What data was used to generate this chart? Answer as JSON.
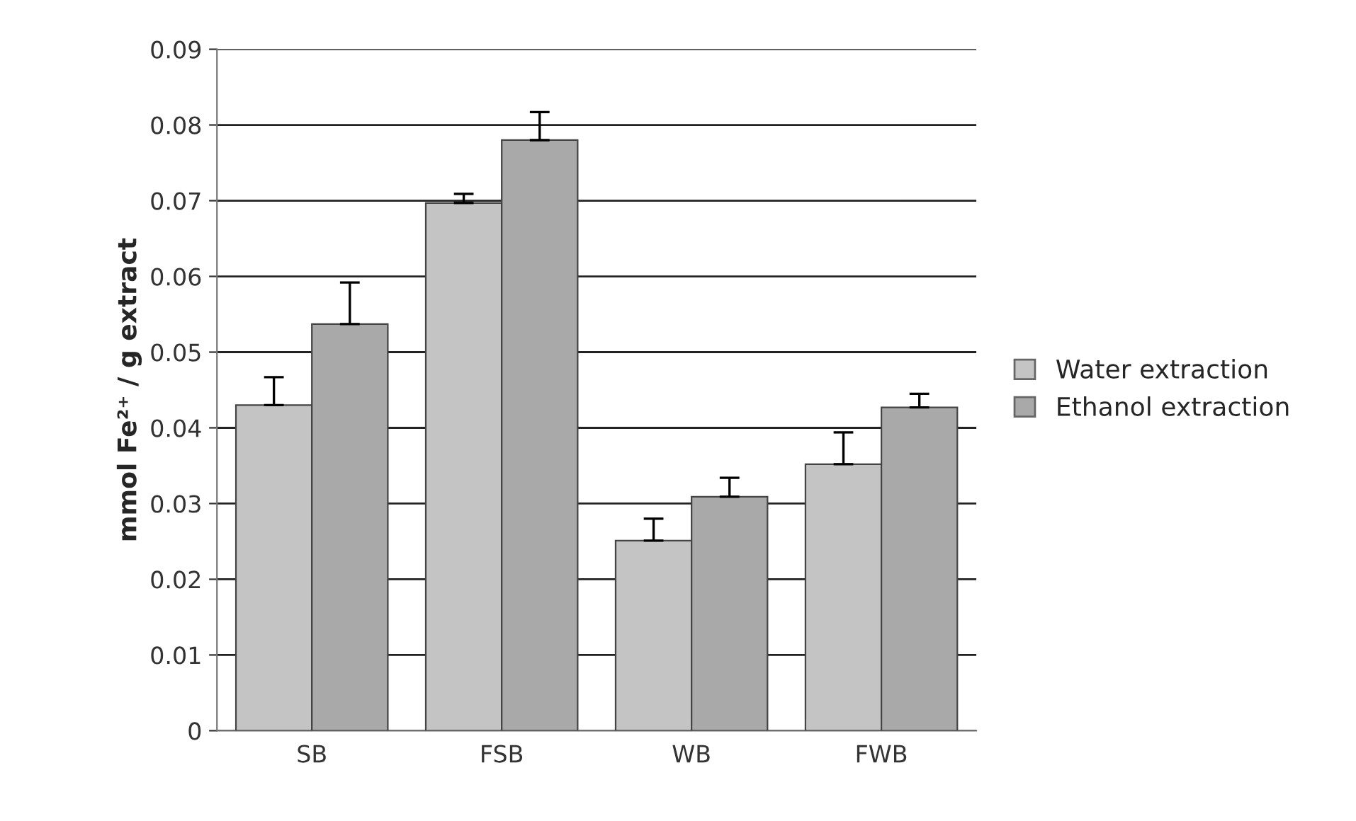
{
  "chart_data": {
    "type": "bar",
    "ylabel": "mmol Fe²⁺ / g extract",
    "categories": [
      "SB",
      "FSB",
      "WB",
      "FWB"
    ],
    "series": [
      {
        "name": "Water extraction",
        "color": "#c4c4c4",
        "values": [
          0.043,
          0.0697,
          0.0251,
          0.0352
        ],
        "errors": [
          [
            0.043,
            0.0467
          ],
          [
            0.0697,
            0.0709
          ],
          [
            0.0251,
            0.028
          ],
          [
            0.0352,
            0.0394
          ]
        ]
      },
      {
        "name": "Ethanol extraction",
        "color": "#a9a9a9",
        "values": [
          0.0537,
          0.078,
          0.0309,
          0.0427
        ],
        "errors": [
          [
            0.0537,
            0.0592
          ],
          [
            0.078,
            0.0817
          ],
          [
            0.0309,
            0.0334
          ],
          [
            0.0427,
            0.0445
          ]
        ]
      }
    ],
    "ylim": [
      0,
      0.09
    ],
    "yticks": [
      0,
      0.01,
      0.02,
      0.03,
      0.04,
      0.05,
      0.06,
      0.07,
      0.08,
      0.09
    ],
    "grid": "y",
    "legend": "right"
  }
}
